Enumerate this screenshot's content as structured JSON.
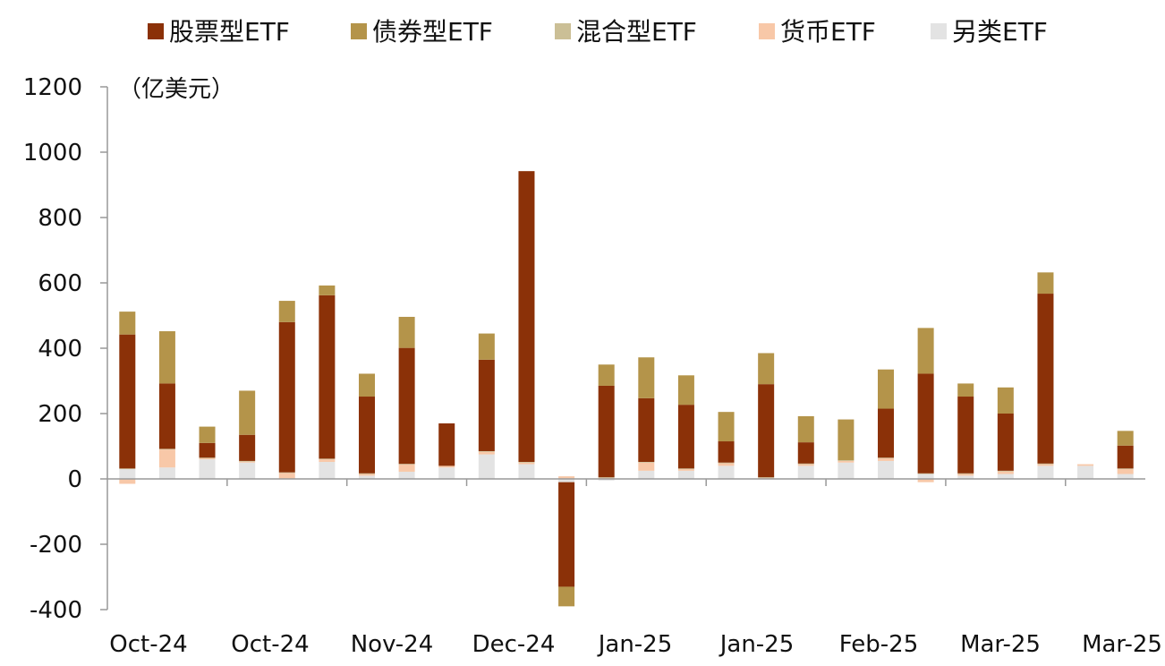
{
  "chart_data": {
    "type": "bar",
    "stacked": true,
    "unit_label": "（亿美元）",
    "legend_position": "top",
    "grid": false,
    "ylim": [
      -400,
      1200
    ],
    "yticks": [
      1200,
      1000,
      800,
      600,
      400,
      200,
      0,
      -200,
      -400
    ],
    "xtick_labels": [
      "Oct-24",
      "Oct-24",
      "Nov-24",
      "Dec-24",
      "Jan-25",
      "Jan-25",
      "Feb-25",
      "Mar-25",
      "Mar-25"
    ],
    "series": [
      {
        "name": "股票型ETF",
        "color": "#8B3108",
        "values": [
          410,
          200,
          45,
          80,
          460,
          500,
          235,
          355,
          130,
          280,
          890,
          -320,
          280,
          195,
          195,
          65,
          285,
          65,
          0,
          150,
          305,
          235,
          175,
          520,
          0,
          70
        ]
      },
      {
        "name": "债券型ETF",
        "color": "#B4944A",
        "values": [
          70,
          160,
          50,
          135,
          65,
          30,
          70,
          95,
          0,
          80,
          0,
          -60,
          65,
          125,
          90,
          90,
          95,
          80,
          125,
          120,
          140,
          40,
          80,
          65,
          0,
          45
        ]
      },
      {
        "name": "混合型ETF",
        "color": "#CBBF96",
        "values": [
          2,
          2,
          2,
          2,
          2,
          2,
          2,
          2,
          0,
          2,
          2,
          0,
          2,
          2,
          2,
          2,
          2,
          2,
          2,
          2,
          2,
          2,
          2,
          2,
          0,
          2
        ]
      },
      {
        "name": "货币ETF",
        "color": "#F8C8A8",
        "values": [
          -15,
          55,
          3,
          3,
          18,
          8,
          5,
          22,
          5,
          8,
          5,
          8,
          3,
          25,
          5,
          8,
          3,
          5,
          5,
          8,
          -10,
          5,
          8,
          5,
          5,
          15
        ]
      },
      {
        "name": "另类ETF",
        "color": "#E3E3E3",
        "values": [
          30,
          35,
          60,
          50,
          0,
          52,
          10,
          22,
          35,
          75,
          45,
          -10,
          -5,
          25,
          25,
          40,
          0,
          40,
          50,
          55,
          15,
          10,
          15,
          40,
          40,
          15
        ]
      }
    ]
  }
}
